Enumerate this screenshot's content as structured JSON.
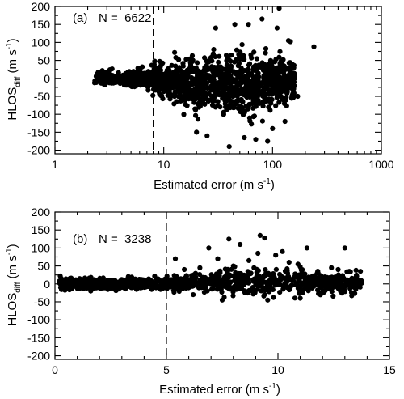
{
  "chart_data": [
    {
      "type": "scatter",
      "panel_label": "(a)",
      "n_text": "N =  6622",
      "x_scale": "log",
      "xlim": [
        1,
        1000
      ],
      "ylim": [
        -210,
        200
      ],
      "x_ticks": [
        1,
        10,
        100,
        1000
      ],
      "x_tick_labels": [
        "1",
        "10",
        "100",
        "1000"
      ],
      "y_ticks": [
        -200,
        -150,
        -100,
        -50,
        0,
        50,
        100,
        150,
        200
      ],
      "y_tick_labels": [
        "-200",
        "-150",
        "-100",
        "-50",
        "0",
        "50",
        "100",
        "150",
        "200"
      ],
      "xlabel": {
        "main": "Estimated error (m s",
        "sup": "-1",
        "close": ")"
      },
      "ylabel": {
        "main": "HLOS",
        "sub": "diff",
        "unit": " (m s",
        "sup": "-1",
        "close": ")"
      },
      "threshold_x": 8,
      "cloud": [
        [
          2.3,
          0,
          14
        ],
        [
          2.6,
          0,
          15
        ],
        [
          3,
          0,
          14
        ],
        [
          3.5,
          -1,
          14
        ],
        [
          4,
          0,
          16
        ],
        [
          5,
          0,
          17
        ],
        [
          6,
          -1,
          19
        ],
        [
          7,
          -2,
          22
        ],
        [
          8,
          -3,
          26
        ],
        [
          10,
          -5,
          33
        ],
        [
          12,
          -7,
          40
        ],
        [
          15,
          -10,
          48
        ],
        [
          20,
          -13,
          57
        ],
        [
          25,
          -16,
          62
        ],
        [
          30,
          -18,
          65
        ],
        [
          40,
          -20,
          66
        ],
        [
          50,
          -20,
          64
        ],
        [
          60,
          -18,
          62
        ],
        [
          80,
          -15,
          58
        ],
        [
          100,
          -10,
          54
        ],
        [
          130,
          -5,
          48
        ],
        [
          160,
          0,
          42
        ]
      ],
      "outliers": [
        [
          115,
          195
        ],
        [
          240,
          88
        ],
        [
          80,
          165
        ],
        [
          60,
          150
        ],
        [
          110,
          140
        ],
        [
          45,
          150
        ],
        [
          70,
          -170
        ],
        [
          100,
          -140
        ],
        [
          130,
          -120
        ],
        [
          40,
          -190
        ],
        [
          55,
          -165
        ],
        [
          20,
          -150
        ],
        [
          150,
          40
        ],
        [
          170,
          -50
        ],
        [
          30,
          140
        ],
        [
          90,
          -175
        ],
        [
          25,
          -160
        ],
        [
          140,
          105
        ]
      ]
    },
    {
      "type": "scatter",
      "panel_label": "(b)",
      "n_text": "N =  3238",
      "x_scale": "linear",
      "xlim": [
        0,
        15
      ],
      "ylim": [
        -210,
        200
      ],
      "x_ticks": [
        0,
        5,
        10,
        15
      ],
      "x_tick_labels": [
        "0",
        "5",
        "10",
        "15"
      ],
      "y_ticks": [
        -200,
        -150,
        -100,
        -50,
        0,
        50,
        100,
        150,
        200
      ],
      "y_tick_labels": [
        "-200",
        "-150",
        "-100",
        "-50",
        "0",
        "50",
        "100",
        "150",
        "200"
      ],
      "xlabel": {
        "main": "Estimated error (m s",
        "sup": "-1",
        "close": ")"
      },
      "ylabel": {
        "main": "HLOS",
        "sub": "diff",
        "unit": " (m s",
        "sup": "-1",
        "close": ")"
      },
      "threshold_x": 5,
      "cloud": [
        [
          0.2,
          0,
          14
        ],
        [
          0.5,
          0,
          13
        ],
        [
          1,
          0,
          13
        ],
        [
          1.5,
          0,
          12
        ],
        [
          2,
          0,
          12
        ],
        [
          2.5,
          0,
          12
        ],
        [
          3,
          0,
          12
        ],
        [
          3.5,
          0,
          12
        ],
        [
          4,
          0,
          13
        ],
        [
          4.5,
          0,
          14
        ],
        [
          5,
          1,
          15
        ],
        [
          5.5,
          1,
          17
        ],
        [
          6,
          2,
          19
        ],
        [
          7,
          3,
          22
        ],
        [
          8,
          4,
          26
        ],
        [
          9,
          5,
          30
        ],
        [
          10,
          5,
          30
        ],
        [
          11,
          4,
          28
        ],
        [
          12,
          3,
          22
        ],
        [
          13,
          2,
          20
        ],
        [
          13.8,
          1,
          18
        ]
      ],
      "outliers": [
        [
          7.8,
          125
        ],
        [
          9.2,
          135
        ],
        [
          9.4,
          128
        ],
        [
          6.9,
          100
        ],
        [
          8.3,
          110
        ],
        [
          10.2,
          90
        ],
        [
          11.3,
          100
        ],
        [
          13,
          100
        ],
        [
          5.4,
          70
        ],
        [
          9.9,
          80
        ],
        [
          8.7,
          65
        ],
        [
          12.4,
          45
        ],
        [
          12.7,
          40
        ],
        [
          13.2,
          35
        ],
        [
          13.5,
          38
        ],
        [
          13.7,
          35
        ],
        [
          10.5,
          60
        ],
        [
          7.5,
          -45
        ],
        [
          11,
          -40
        ],
        [
          12.8,
          -20
        ],
        [
          6.2,
          -30
        ],
        [
          9.8,
          -38
        ],
        [
          8,
          50
        ],
        [
          10.9,
          55
        ],
        [
          6.5,
          45
        ],
        [
          11.8,
          30
        ],
        [
          7.3,
          70
        ],
        [
          9.1,
          85
        ],
        [
          5.8,
          40
        ],
        [
          12.2,
          -10
        ]
      ]
    }
  ]
}
